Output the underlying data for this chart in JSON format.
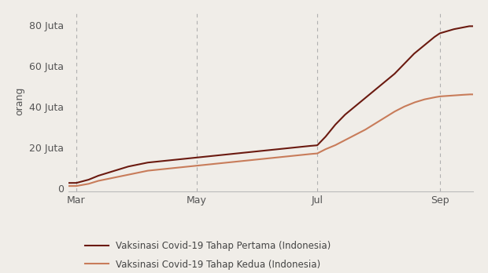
{
  "ylabel": "orang",
  "background_color": "#f0ede8",
  "plot_background_color": "#f0ede8",
  "line1_color": "#6b1a10",
  "line2_color": "#c87c5a",
  "line1_label": "Vaksinasi Covid-19 Tahap Pertama (Indonesia)",
  "line2_label": "Vaksinasi Covid-19 Tahap Kedua (Indonesia)",
  "line_width": 1.5,
  "ytick_labels": [
    "0",
    "20 Juta",
    "40 Juta",
    "60 Juta",
    "80 Juta"
  ],
  "ytick_values": [
    0,
    20000000,
    40000000,
    60000000,
    80000000
  ],
  "ylim": [
    -1500000,
    87000000
  ],
  "xtick_labels": [
    "Mar",
    "May",
    "Jul",
    "Sep"
  ],
  "xtick_days": [
    59,
    120,
    181,
    243
  ],
  "xlim_days": [
    55,
    260
  ],
  "vline_days": [
    59,
    120,
    181,
    243
  ],
  "dose1_days": [
    59,
    65,
    70,
    75,
    80,
    85,
    90,
    95,
    100,
    105,
    110,
    115,
    120,
    125,
    130,
    135,
    140,
    145,
    150,
    155,
    160,
    165,
    170,
    175,
    181,
    185,
    190,
    195,
    200,
    205,
    210,
    215,
    220,
    225,
    230,
    235,
    240,
    243,
    250,
    258
  ],
  "dose1_vals": [
    2500000,
    4000000,
    6000000,
    7500000,
    9000000,
    10500000,
    11500000,
    12500000,
    13000000,
    13500000,
    14000000,
    14500000,
    15000000,
    15500000,
    16000000,
    16500000,
    17000000,
    17500000,
    18000000,
    18500000,
    19000000,
    19500000,
    20000000,
    20500000,
    21000000,
    25000000,
    31000000,
    36000000,
    40000000,
    44000000,
    48000000,
    52000000,
    56000000,
    61000000,
    66000000,
    70000000,
    74000000,
    76000000,
    78000000,
    79500000
  ],
  "dose2_days": [
    59,
    65,
    70,
    75,
    80,
    85,
    90,
    95,
    100,
    105,
    110,
    115,
    120,
    125,
    130,
    135,
    140,
    145,
    150,
    155,
    160,
    165,
    170,
    175,
    181,
    185,
    190,
    195,
    200,
    205,
    210,
    215,
    220,
    225,
    230,
    235,
    240,
    243,
    250,
    258
  ],
  "dose2_vals": [
    1000000,
    2000000,
    3500000,
    4500000,
    5500000,
    6500000,
    7500000,
    8500000,
    9000000,
    9500000,
    10000000,
    10500000,
    11000000,
    11500000,
    12000000,
    12500000,
    13000000,
    13500000,
    14000000,
    14500000,
    15000000,
    15500000,
    16000000,
    16500000,
    17000000,
    19000000,
    21000000,
    23500000,
    26000000,
    28500000,
    31500000,
    34500000,
    37500000,
    40000000,
    42000000,
    43500000,
    44500000,
    45000000,
    45500000,
    46000000
  ]
}
